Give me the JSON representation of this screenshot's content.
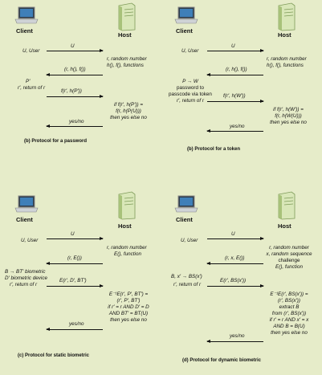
{
  "panels": [
    {
      "id": "b_password",
      "client": "Client",
      "host": "Host",
      "caption": "(b) Protocol for a password",
      "left_notes": [
        "U, User",
        "P′",
        "r′, return of r"
      ],
      "right_notes": [
        "r, random number",
        "h(), f(), functions",
        "if f(r′, h(P′)) =",
        "f(r, h(P(U)))",
        "then yes else no"
      ],
      "arrows": [
        "U",
        "(r, h(), f())",
        "f(r′, h(P′))",
        "yes/no"
      ]
    },
    {
      "id": "b_token",
      "client": "Client",
      "host": "Host",
      "caption": "(b) Protocol for a token",
      "left_notes": [
        "U, User",
        "P → W",
        "password to",
        "passcode via token",
        "r′, return of r"
      ],
      "right_notes": [
        "r, random number",
        "h(), f(), functions",
        "if f(r′, h(W′)) =",
        "f(r, h(W(U)))",
        "then yes else no"
      ],
      "arrows": [
        "U",
        "(r, h(), f())",
        "f(r′, h(W′))",
        "yes/no"
      ]
    },
    {
      "id": "c_static",
      "client": "Client",
      "host": "Host",
      "caption": "(c) Protocol for static biometric",
      "left_notes": [
        "U, User",
        "B → BT′ biometric",
        "D′ biometric device",
        "r′, return of r"
      ],
      "right_notes": [
        "r, random number",
        "E(), function",
        "E⁻¹E(r′, P′, BT′) =",
        "(r′, P′, BT′)",
        "if r′ = r AND D′ = D",
        "AND BT′ = BT(U)",
        "then yes else no"
      ],
      "arrows": [
        "U",
        "(r, E())",
        "E(r′, D′, BT′)",
        "yes/no"
      ]
    },
    {
      "id": "d_dynamic",
      "client": "Client",
      "host": "Host",
      "caption": "(d) Protocol for dynamic biometric",
      "left_notes": [
        "U, User",
        "B, x′ → BS(x′)",
        "r′, return of r"
      ],
      "right_notes": [
        "r, random number",
        "x, random sequence",
        "challenge",
        "E(), function",
        "E⁻¹E(r′, BS(x′)) =",
        "(r′, BS(x′))",
        "extract B",
        "from (r′, BS(x′))",
        "if r′ = r AND x′ = x",
        "AND B = B(U)",
        "then yes else no"
      ],
      "arrows": [
        "U",
        "(r, x, E())",
        "E(r′, BS(x′))",
        "yes/no"
      ]
    }
  ]
}
